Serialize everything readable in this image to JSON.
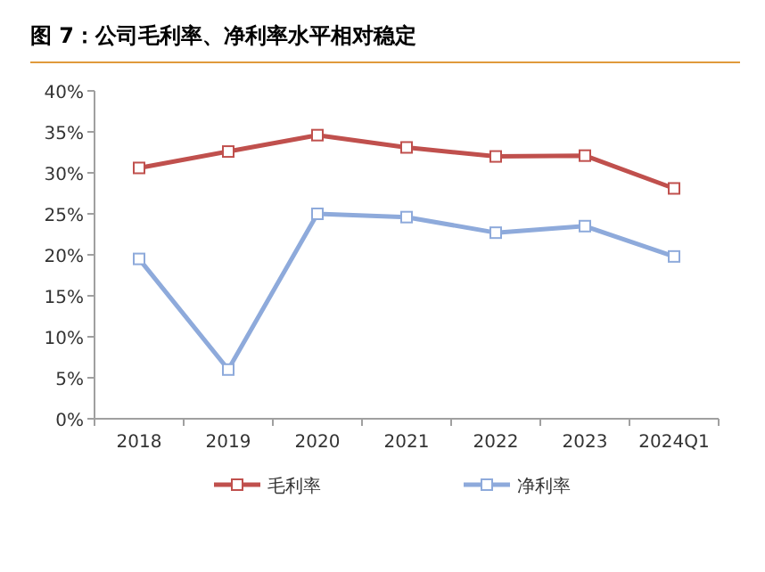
{
  "chart_data": {
    "type": "line",
    "title": "图 7：公司毛利率、净利率水平相对稳定",
    "categories": [
      "2018",
      "2019",
      "2020",
      "2021",
      "2022",
      "2023",
      "2024Q1"
    ],
    "series": [
      {
        "name": "毛利率",
        "color": "#c0504d",
        "values": [
          30.6,
          32.6,
          34.6,
          33.1,
          32.0,
          32.1,
          28.1
        ]
      },
      {
        "name": "净利率",
        "color": "#8eaadb",
        "values": [
          19.5,
          6.0,
          25.0,
          24.6,
          22.7,
          23.5,
          19.8
        ]
      }
    ],
    "ylim": [
      0,
      40
    ],
    "yticks": [
      {
        "value": 0,
        "label": "0%"
      },
      {
        "value": 5,
        "label": "5%"
      },
      {
        "value": 10,
        "label": "10%"
      },
      {
        "value": 15,
        "label": "15%"
      },
      {
        "value": 20,
        "label": "20%"
      },
      {
        "value": 25,
        "label": "25%"
      },
      {
        "value": 30,
        "label": "30%"
      },
      {
        "value": 35,
        "label": "35%"
      },
      {
        "value": 40,
        "label": "40%"
      }
    ],
    "marker": "square",
    "legend": "bottom",
    "grid": false
  }
}
